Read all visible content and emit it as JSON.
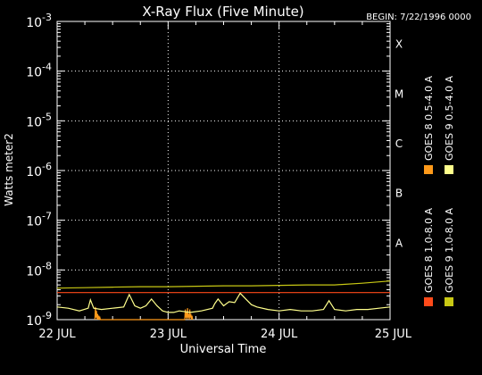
{
  "chart_data": {
    "type": "line",
    "title": "X-Ray Flux (Five Minute)",
    "begin_label": "BEGIN: 7/22/1996 0000",
    "xlabel": "Universal Time",
    "ylabel": "Watts meter2",
    "x_ticks": [
      "22 JUL",
      "23 JUL",
      "24 JUL",
      "25 JUL"
    ],
    "x_range_days": [
      0,
      3
    ],
    "y_scale": "log",
    "y_ticks": [
      {
        "base": "10",
        "exp": "-9",
        "value": 1e-09
      },
      {
        "base": "10",
        "exp": "-8",
        "value": 1e-08
      },
      {
        "base": "10",
        "exp": "-7",
        "value": 1e-07
      },
      {
        "base": "10",
        "exp": "-6",
        "value": 1e-06
      },
      {
        "base": "10",
        "exp": "-5",
        "value": 1e-05
      },
      {
        "base": "10",
        "exp": "-4",
        "value": 0.0001
      },
      {
        "base": "10",
        "exp": "-3",
        "value": 0.001
      }
    ],
    "ylim": [
      1e-09,
      0.001
    ],
    "flare_classes": [
      {
        "label": "A",
        "value": 1e-08
      },
      {
        "label": "B",
        "value": 1e-07
      },
      {
        "label": "C",
        "value": 1e-06
      },
      {
        "label": "M",
        "value": 1e-05
      },
      {
        "label": "X",
        "value": 0.0001
      }
    ],
    "grid": "dotted horizontal at flare class levels, dotted vertical at day boundaries",
    "legend_position": "right",
    "series": [
      {
        "name": "GOES 8 1.0-8.0 A",
        "color": "#ff4a1a",
        "x": [
          0,
          0.5,
          1,
          1.5,
          2,
          2.5,
          3
        ],
        "y": [
          3.5e-09,
          3.5e-09,
          3.5e-09,
          3.5e-09,
          3.5e-09,
          3.5e-09,
          3.5e-09
        ]
      },
      {
        "name": "GOES 8 0.5-4.0 A",
        "color": "#ff9a1a",
        "x": [
          0.34,
          0.345,
          0.35,
          0.355,
          0.36,
          0.365,
          0.37,
          0.375,
          0.38,
          0.385,
          0.39,
          1.15,
          1.155,
          1.16,
          1.165,
          1.17,
          1.175,
          1.18,
          1.185,
          1.19,
          1.195,
          1.2,
          1.205,
          1.21,
          1.215,
          1.22
        ],
        "y": [
          1e-09,
          1.8e-09,
          1.1e-09,
          1.5e-09,
          1e-09,
          1.3e-09,
          1e-09,
          1.2e-09,
          1e-09,
          1.1e-09,
          1e-09,
          1e-09,
          1.6e-09,
          1.1e-09,
          1.4e-09,
          1e-09,
          1.7e-09,
          1.1e-09,
          1.3e-09,
          1e-09,
          1.6e-09,
          1.1e-09,
          1.3e-09,
          1e-09,
          1.2e-09,
          1e-09
        ]
      },
      {
        "name": "GOES 9 1.0-8.0 A",
        "color": "#c8c814",
        "x": [
          0,
          0.25,
          0.5,
          0.75,
          1,
          1.25,
          1.5,
          1.75,
          2,
          2.25,
          2.5,
          2.75,
          3
        ],
        "y": [
          4.3e-09,
          4.4e-09,
          4.5e-09,
          4.6e-09,
          4.6e-09,
          4.7e-09,
          4.8e-09,
          4.8e-09,
          4.9e-09,
          5e-09,
          5e-09,
          5.4e-09,
          6e-09
        ]
      },
      {
        "name": "GOES 9 0.5-4.0 A",
        "color": "#ffff8c",
        "x": [
          0,
          0.1,
          0.2,
          0.28,
          0.3,
          0.33,
          0.4,
          0.5,
          0.6,
          0.65,
          0.7,
          0.75,
          0.8,
          0.85,
          0.9,
          0.95,
          1.0,
          1.05,
          1.1,
          1.2,
          1.3,
          1.4,
          1.42,
          1.45,
          1.5,
          1.55,
          1.6,
          1.65,
          1.7,
          1.75,
          1.8,
          1.9,
          2.0,
          2.1,
          2.2,
          2.3,
          2.4,
          2.45,
          2.5,
          2.6,
          2.7,
          2.8,
          2.9,
          3.0
        ],
        "y": [
          1.8e-09,
          1.7e-09,
          1.5e-09,
          1.7e-09,
          2.5e-09,
          1.7e-09,
          1.6e-09,
          1.7e-09,
          1.8e-09,
          3.2e-09,
          1.9e-09,
          1.7e-09,
          1.9e-09,
          2.6e-09,
          1.9e-09,
          1.5e-09,
          1.4e-09,
          1.4e-09,
          1.5e-09,
          1.4e-09,
          1.5e-09,
          1.7e-09,
          2.1e-09,
          2.6e-09,
          1.9e-09,
          2.3e-09,
          2.2e-09,
          3.4e-09,
          2.6e-09,
          2e-09,
          1.8e-09,
          1.6e-09,
          1.5e-09,
          1.6e-09,
          1.5e-09,
          1.5e-09,
          1.6e-09,
          2.4e-09,
          1.6e-09,
          1.5e-09,
          1.6e-09,
          1.6e-09,
          1.7e-09,
          1.8e-09
        ]
      }
    ]
  }
}
